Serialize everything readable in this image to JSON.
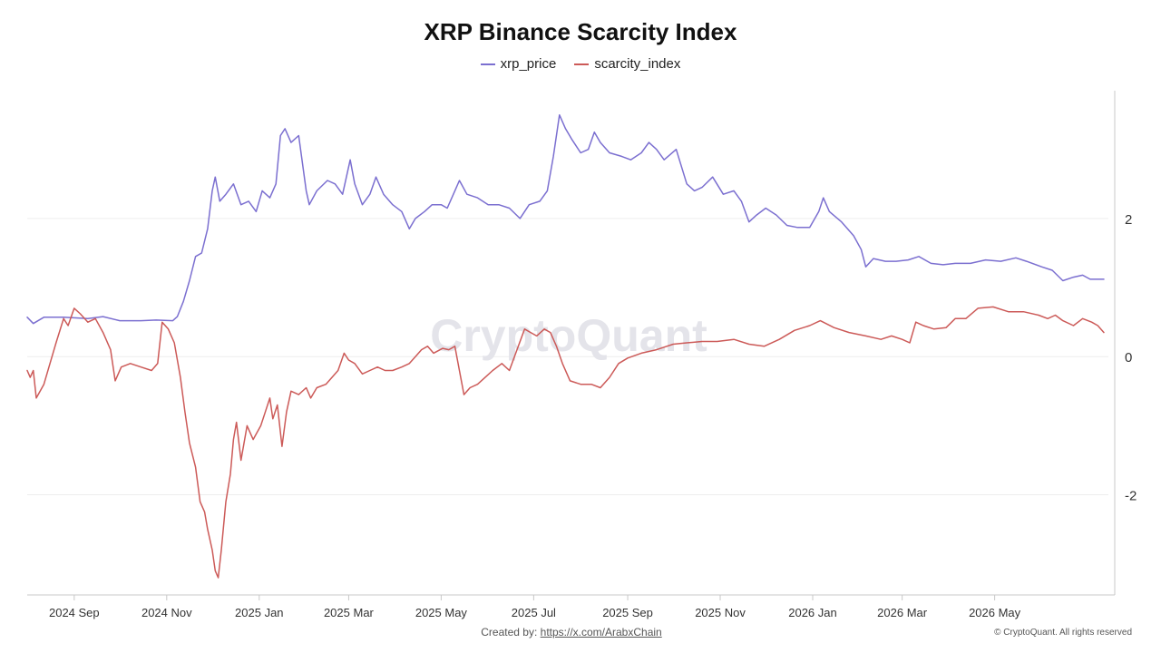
{
  "chart_data": {
    "type": "line",
    "title": "XRP Binance Scarcity Index",
    "watermark": "CryptoQuant",
    "x_ticks": [
      "2024 Sep",
      "2024 Nov",
      "2025 Jan",
      "2025 Mar",
      "2025 May",
      "2025 Jul",
      "2025 Sep",
      "2025 Nov",
      "2026 Jan",
      "2026 Mar",
      "2026 May"
    ],
    "x_range": [
      "2024-08-01",
      "2026-07-15"
    ],
    "y_ticks": [
      2,
      0,
      -2
    ],
    "ylim": [
      -3.45,
      3.85
    ],
    "y_axis_position": "right",
    "grid": true,
    "legend_position": "top-center",
    "series": [
      {
        "name": "xrp_price",
        "color": "#7b6fd0",
        "points": [
          [
            "2024-08-01",
            0.57
          ],
          [
            "2024-08-05",
            0.48
          ],
          [
            "2024-08-12",
            0.57
          ],
          [
            "2024-08-25",
            0.57
          ],
          [
            "2024-09-10",
            0.55
          ],
          [
            "2024-09-20",
            0.58
          ],
          [
            "2024-10-01",
            0.52
          ],
          [
            "2024-10-15",
            0.52
          ],
          [
            "2024-10-25",
            0.53
          ],
          [
            "2024-11-05",
            0.52
          ],
          [
            "2024-11-08",
            0.58
          ],
          [
            "2024-11-12",
            0.8
          ],
          [
            "2024-11-16",
            1.1
          ],
          [
            "2024-11-20",
            1.45
          ],
          [
            "2024-11-24",
            1.5
          ],
          [
            "2024-11-28",
            1.85
          ],
          [
            "2024-12-01",
            2.4
          ],
          [
            "2024-12-03",
            2.6
          ],
          [
            "2024-12-06",
            2.25
          ],
          [
            "2024-12-10",
            2.35
          ],
          [
            "2024-12-15",
            2.5
          ],
          [
            "2024-12-20",
            2.2
          ],
          [
            "2024-12-25",
            2.25
          ],
          [
            "2024-12-30",
            2.1
          ],
          [
            "2025-01-03",
            2.4
          ],
          [
            "2025-01-08",
            2.3
          ],
          [
            "2025-01-12",
            2.5
          ],
          [
            "2025-01-15",
            3.2
          ],
          [
            "2025-01-18",
            3.3
          ],
          [
            "2025-01-22",
            3.1
          ],
          [
            "2025-01-27",
            3.2
          ],
          [
            "2025-02-01",
            2.4
          ],
          [
            "2025-02-03",
            2.2
          ],
          [
            "2025-02-08",
            2.4
          ],
          [
            "2025-02-15",
            2.55
          ],
          [
            "2025-02-20",
            2.5
          ],
          [
            "2025-02-25",
            2.35
          ],
          [
            "2025-03-02",
            2.85
          ],
          [
            "2025-03-05",
            2.5
          ],
          [
            "2025-03-10",
            2.2
          ],
          [
            "2025-03-15",
            2.35
          ],
          [
            "2025-03-19",
            2.6
          ],
          [
            "2025-03-24",
            2.35
          ],
          [
            "2025-03-30",
            2.2
          ],
          [
            "2025-04-05",
            2.1
          ],
          [
            "2025-04-10",
            1.85
          ],
          [
            "2025-04-14",
            2.0
          ],
          [
            "2025-04-20",
            2.1
          ],
          [
            "2025-04-25",
            2.2
          ],
          [
            "2025-05-01",
            2.2
          ],
          [
            "2025-05-05",
            2.15
          ],
          [
            "2025-05-10",
            2.4
          ],
          [
            "2025-05-13",
            2.55
          ],
          [
            "2025-05-18",
            2.35
          ],
          [
            "2025-05-25",
            2.3
          ],
          [
            "2025-06-01",
            2.2
          ],
          [
            "2025-06-08",
            2.2
          ],
          [
            "2025-06-15",
            2.15
          ],
          [
            "2025-06-22",
            2.0
          ],
          [
            "2025-06-28",
            2.2
          ],
          [
            "2025-07-05",
            2.25
          ],
          [
            "2025-07-10",
            2.4
          ],
          [
            "2025-07-14",
            2.9
          ],
          [
            "2025-07-18",
            3.5
          ],
          [
            "2025-07-22",
            3.3
          ],
          [
            "2025-07-26",
            3.15
          ],
          [
            "2025-08-01",
            2.95
          ],
          [
            "2025-08-06",
            3.0
          ],
          [
            "2025-08-10",
            3.25
          ],
          [
            "2025-08-14",
            3.1
          ],
          [
            "2025-08-20",
            2.95
          ],
          [
            "2025-08-28",
            2.9
          ],
          [
            "2025-09-03",
            2.85
          ],
          [
            "2025-09-10",
            2.95
          ],
          [
            "2025-09-15",
            3.1
          ],
          [
            "2025-09-20",
            3.0
          ],
          [
            "2025-09-25",
            2.85
          ],
          [
            "2025-10-03",
            3.0
          ],
          [
            "2025-10-10",
            2.5
          ],
          [
            "2025-10-15",
            2.4
          ],
          [
            "2025-10-20",
            2.45
          ],
          [
            "2025-10-27",
            2.6
          ],
          [
            "2025-11-03",
            2.35
          ],
          [
            "2025-11-10",
            2.4
          ],
          [
            "2025-11-15",
            2.25
          ],
          [
            "2025-11-20",
            1.95
          ],
          [
            "2025-11-25",
            2.05
          ],
          [
            "2025-12-01",
            2.15
          ],
          [
            "2025-12-08",
            2.05
          ],
          [
            "2025-12-15",
            1.9
          ],
          [
            "2025-12-22",
            1.87
          ],
          [
            "2025-12-30",
            1.87
          ],
          [
            "2026-01-05",
            2.1
          ],
          [
            "2026-01-08",
            2.3
          ],
          [
            "2026-01-12",
            2.1
          ],
          [
            "2026-01-20",
            1.95
          ],
          [
            "2026-01-28",
            1.75
          ],
          [
            "2026-02-02",
            1.55
          ],
          [
            "2026-02-05",
            1.3
          ],
          [
            "2026-02-10",
            1.42
          ],
          [
            "2026-02-18",
            1.38
          ],
          [
            "2026-02-25",
            1.38
          ],
          [
            "2026-03-05",
            1.4
          ],
          [
            "2026-03-12",
            1.45
          ],
          [
            "2026-03-20",
            1.35
          ],
          [
            "2026-03-28",
            1.33
          ],
          [
            "2026-04-05",
            1.35
          ],
          [
            "2026-04-15",
            1.35
          ],
          [
            "2026-04-25",
            1.4
          ],
          [
            "2026-05-05",
            1.38
          ],
          [
            "2026-05-15",
            1.43
          ],
          [
            "2026-05-22",
            1.38
          ],
          [
            "2026-06-01",
            1.3
          ],
          [
            "2026-06-08",
            1.25
          ],
          [
            "2026-06-15",
            1.1
          ],
          [
            "2026-06-22",
            1.15
          ],
          [
            "2026-06-28",
            1.18
          ],
          [
            "2026-07-03",
            1.12
          ],
          [
            "2026-07-12",
            1.12
          ]
        ]
      },
      {
        "name": "scarcity_index",
        "color": "#cc5a58",
        "points": [
          [
            "2024-08-01",
            -0.2
          ],
          [
            "2024-08-03",
            -0.3
          ],
          [
            "2024-08-05",
            -0.2
          ],
          [
            "2024-08-07",
            -0.6
          ],
          [
            "2024-08-12",
            -0.4
          ],
          [
            "2024-08-16",
            -0.1
          ],
          [
            "2024-08-20",
            0.2
          ],
          [
            "2024-08-25",
            0.55
          ],
          [
            "2024-08-28",
            0.45
          ],
          [
            "2024-09-01",
            0.7
          ],
          [
            "2024-09-05",
            0.62
          ],
          [
            "2024-09-10",
            0.5
          ],
          [
            "2024-09-15",
            0.55
          ],
          [
            "2024-09-20",
            0.35
          ],
          [
            "2024-09-25",
            0.1
          ],
          [
            "2024-09-28",
            -0.35
          ],
          [
            "2024-10-02",
            -0.15
          ],
          [
            "2024-10-08",
            -0.1
          ],
          [
            "2024-10-15",
            -0.15
          ],
          [
            "2024-10-22",
            -0.2
          ],
          [
            "2024-10-26",
            -0.1
          ],
          [
            "2024-10-29",
            0.5
          ],
          [
            "2024-11-02",
            0.4
          ],
          [
            "2024-11-06",
            0.2
          ],
          [
            "2024-11-10",
            -0.3
          ],
          [
            "2024-11-13",
            -0.8
          ],
          [
            "2024-11-16",
            -1.25
          ],
          [
            "2024-11-20",
            -1.6
          ],
          [
            "2024-11-23",
            -2.1
          ],
          [
            "2024-11-26",
            -2.25
          ],
          [
            "2024-11-28",
            -2.5
          ],
          [
            "2024-12-01",
            -2.8
          ],
          [
            "2024-12-03",
            -3.1
          ],
          [
            "2024-12-05",
            -3.2
          ],
          [
            "2024-12-07",
            -2.8
          ],
          [
            "2024-12-10",
            -2.1
          ],
          [
            "2024-12-13",
            -1.7
          ],
          [
            "2024-12-15",
            -1.2
          ],
          [
            "2024-12-17",
            -0.95
          ],
          [
            "2024-12-20",
            -1.5
          ],
          [
            "2024-12-24",
            -1.0
          ],
          [
            "2024-12-28",
            -1.2
          ],
          [
            "2025-01-02",
            -1.0
          ],
          [
            "2025-01-05",
            -0.8
          ],
          [
            "2025-01-08",
            -0.6
          ],
          [
            "2025-01-10",
            -0.9
          ],
          [
            "2025-01-13",
            -0.7
          ],
          [
            "2025-01-16",
            -1.3
          ],
          [
            "2025-01-19",
            -0.8
          ],
          [
            "2025-01-22",
            -0.5
          ],
          [
            "2025-01-27",
            -0.55
          ],
          [
            "2025-02-01",
            -0.45
          ],
          [
            "2025-02-04",
            -0.6
          ],
          [
            "2025-02-08",
            -0.45
          ],
          [
            "2025-02-14",
            -0.4
          ],
          [
            "2025-02-18",
            -0.3
          ],
          [
            "2025-02-22",
            -0.2
          ],
          [
            "2025-02-26",
            0.05
          ],
          [
            "2025-03-01",
            -0.05
          ],
          [
            "2025-03-05",
            -0.1
          ],
          [
            "2025-03-10",
            -0.25
          ],
          [
            "2025-03-15",
            -0.2
          ],
          [
            "2025-03-20",
            -0.15
          ],
          [
            "2025-03-25",
            -0.2
          ],
          [
            "2025-03-30",
            -0.2
          ],
          [
            "2025-04-05",
            -0.15
          ],
          [
            "2025-04-10",
            -0.1
          ],
          [
            "2025-04-14",
            0.0
          ],
          [
            "2025-04-18",
            0.1
          ],
          [
            "2025-04-22",
            0.15
          ],
          [
            "2025-04-26",
            0.05
          ],
          [
            "2025-05-02",
            0.12
          ],
          [
            "2025-05-06",
            0.1
          ],
          [
            "2025-05-10",
            0.15
          ],
          [
            "2025-05-13",
            -0.2
          ],
          [
            "2025-05-16",
            -0.55
          ],
          [
            "2025-05-20",
            -0.45
          ],
          [
            "2025-05-25",
            -0.4
          ],
          [
            "2025-05-30",
            -0.3
          ],
          [
            "2025-06-04",
            -0.2
          ],
          [
            "2025-06-10",
            -0.1
          ],
          [
            "2025-06-15",
            -0.2
          ],
          [
            "2025-06-20",
            0.1
          ],
          [
            "2025-06-25",
            0.4
          ],
          [
            "2025-06-29",
            0.35
          ],
          [
            "2025-07-03",
            0.3
          ],
          [
            "2025-07-08",
            0.4
          ],
          [
            "2025-07-12",
            0.35
          ],
          [
            "2025-07-16",
            0.15
          ],
          [
            "2025-07-20",
            -0.1
          ],
          [
            "2025-07-25",
            -0.35
          ],
          [
            "2025-08-01",
            -0.4
          ],
          [
            "2025-08-08",
            -0.4
          ],
          [
            "2025-08-14",
            -0.45
          ],
          [
            "2025-08-20",
            -0.3
          ],
          [
            "2025-08-26",
            -0.1
          ],
          [
            "2025-09-01",
            -0.02
          ],
          [
            "2025-09-10",
            0.05
          ],
          [
            "2025-09-20",
            0.1
          ],
          [
            "2025-10-01",
            0.18
          ],
          [
            "2025-10-10",
            0.2
          ],
          [
            "2025-10-20",
            0.22
          ],
          [
            "2025-10-30",
            0.22
          ],
          [
            "2025-11-10",
            0.25
          ],
          [
            "2025-11-20",
            0.18
          ],
          [
            "2025-11-30",
            0.15
          ],
          [
            "2025-12-10",
            0.25
          ],
          [
            "2025-12-20",
            0.38
          ],
          [
            "2025-12-30",
            0.45
          ],
          [
            "2026-01-06",
            0.52
          ],
          [
            "2026-01-15",
            0.42
          ],
          [
            "2026-01-25",
            0.35
          ],
          [
            "2026-02-05",
            0.3
          ],
          [
            "2026-02-15",
            0.25
          ],
          [
            "2026-02-22",
            0.3
          ],
          [
            "2026-03-01",
            0.25
          ],
          [
            "2026-03-06",
            0.2
          ],
          [
            "2026-03-10",
            0.5
          ],
          [
            "2026-03-15",
            0.45
          ],
          [
            "2026-03-22",
            0.4
          ],
          [
            "2026-03-30",
            0.42
          ],
          [
            "2026-04-05",
            0.55
          ],
          [
            "2026-04-12",
            0.55
          ],
          [
            "2026-04-20",
            0.7
          ],
          [
            "2026-04-30",
            0.72
          ],
          [
            "2026-05-10",
            0.65
          ],
          [
            "2026-05-20",
            0.65
          ],
          [
            "2026-05-30",
            0.6
          ],
          [
            "2026-06-05",
            0.55
          ],
          [
            "2026-06-10",
            0.6
          ],
          [
            "2026-06-15",
            0.52
          ],
          [
            "2026-06-22",
            0.45
          ],
          [
            "2026-06-28",
            0.55
          ],
          [
            "2026-07-04",
            0.5
          ],
          [
            "2026-07-08",
            0.45
          ],
          [
            "2026-07-12",
            0.35
          ]
        ]
      }
    ]
  },
  "footer": {
    "created_by_label": "Created by:",
    "created_by_link": "https://x.com/ArabxChain",
    "copyright": "© CryptoQuant. All rights reserved"
  }
}
